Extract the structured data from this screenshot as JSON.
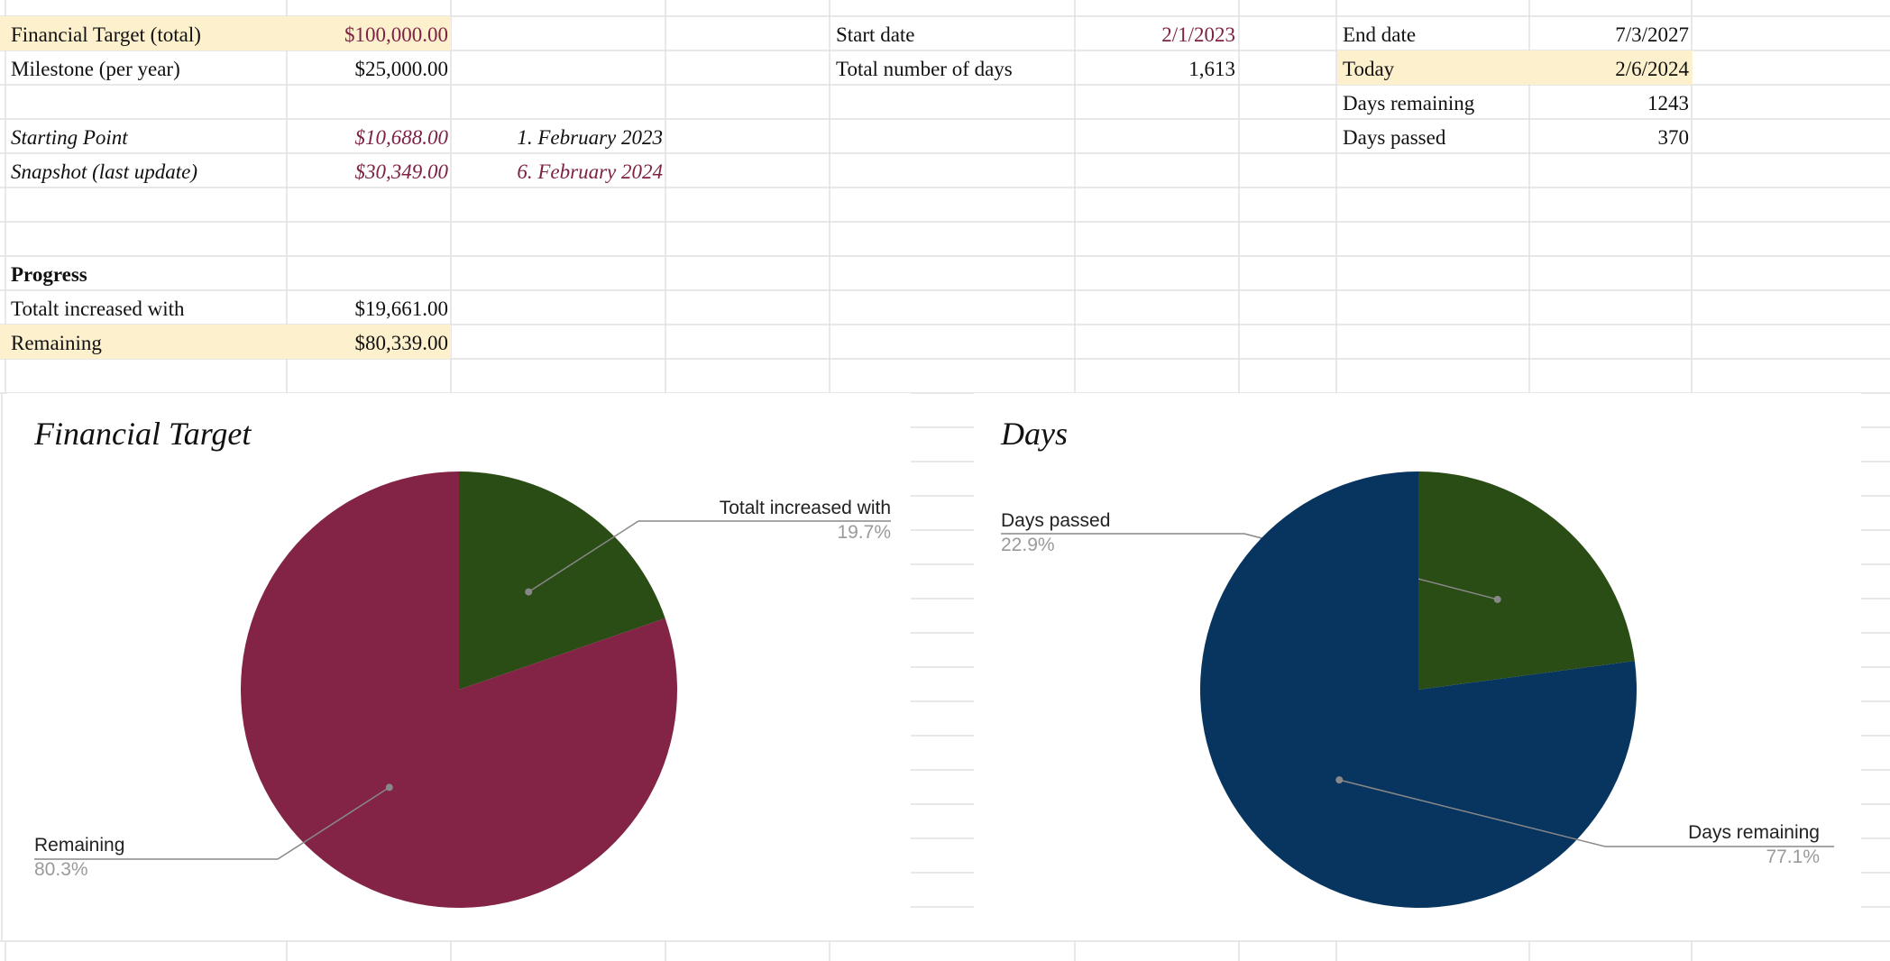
{
  "cells": {
    "financial_target_label": "Financial Target (total)",
    "financial_target_value": "$100,000.00",
    "milestone_label": "Milestone (per year)",
    "milestone_value": "$25,000.00",
    "starting_point_label": "Starting Point",
    "starting_point_value": "$10,688.00",
    "starting_point_date": "1. February 2023",
    "snapshot_label": "Snapshot (last update)",
    "snapshot_value": "$30,349.00",
    "snapshot_date": "6. February 2024",
    "progress_heading": "Progress",
    "increased_label": "Totalt increased with",
    "increased_value": "$19,661.00",
    "remaining_label": "Remaining",
    "remaining_value": "$80,339.00",
    "start_date_label": "Start date",
    "start_date_value": "2/1/2023",
    "total_days_label": "Total number of days",
    "total_days_value": "1,613",
    "end_date_label": "End date",
    "end_date_value": "7/3/2027",
    "today_label": "Today",
    "today_value": "2/6/2024",
    "days_remaining_label": "Days remaining",
    "days_remaining_value": "1243",
    "days_passed_label": "Days passed",
    "days_passed_value": "370"
  },
  "colors": {
    "highlight": "#fdf0cd",
    "maroon_text": "#7e2245",
    "pie_maroon": "#832345",
    "pie_green": "#2a4c15",
    "pie_navy": "#07355f",
    "grid_line": "#e0e0e0"
  },
  "chart_data": [
    {
      "type": "pie",
      "title": "Financial Target",
      "slices": [
        {
          "label": "Totalt increased with",
          "value": 19.7,
          "pct_label": "19.7%",
          "color": "#2a4c15"
        },
        {
          "label": "Remaining",
          "value": 80.3,
          "pct_label": "80.3%",
          "color": "#832345"
        }
      ]
    },
    {
      "type": "pie",
      "title": "Days",
      "slices": [
        {
          "label": "Days passed",
          "value": 22.9,
          "pct_label": "22.9%",
          "color": "#2a4c15"
        },
        {
          "label": "Days remaining",
          "value": 77.1,
          "pct_label": "77.1%",
          "color": "#07355f"
        }
      ]
    }
  ]
}
